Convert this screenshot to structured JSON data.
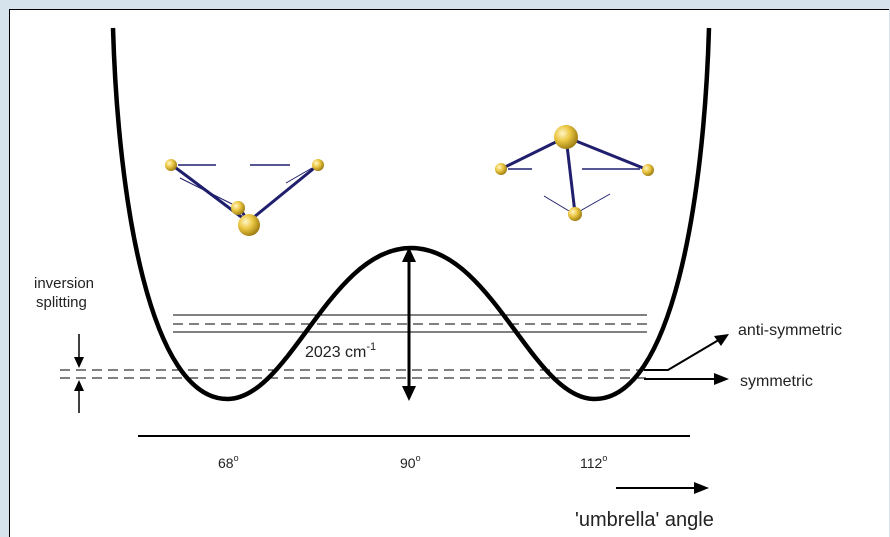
{
  "labels": {
    "barrier": "2023 cm",
    "barrier_exponent": "-1",
    "inversion_line1": "inversion",
    "inversion_line2": "splitting",
    "anti_symmetric": "anti-symmetric",
    "symmetric": "symmetric",
    "axis_title": "'umbrella' angle"
  },
  "ticks": [
    {
      "value": "68",
      "sup": "o"
    },
    {
      "value": "90",
      "sup": "o"
    },
    {
      "value": "112",
      "sup": "o"
    }
  ],
  "colors": {
    "background": "#d6e2ec",
    "bond": "#1f1f6e",
    "atom": "#e8c53a",
    "curve": "#000000"
  }
}
